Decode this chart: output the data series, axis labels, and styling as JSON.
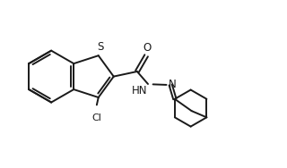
{
  "bg_color": "#ffffff",
  "line_color": "#1a1a1a",
  "line_width": 1.4,
  "font_size": 8.5,
  "S_label": "S",
  "Cl_label": "Cl",
  "O_label": "O",
  "HN_label": "HN",
  "N_label": "N"
}
